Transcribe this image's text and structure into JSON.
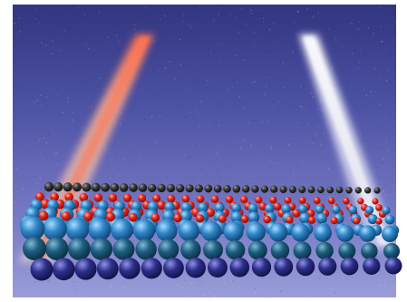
{
  "image": {
    "subject": "atomic-lattice-over-photoemission-spectrum",
    "colors": {
      "background_top": "#3b3f92",
      "background_bottom": "#8c8fd2",
      "band_left_hot": "#e35a3c",
      "band_left_warm": "#f0b6a0",
      "band_right": "#ffffff",
      "black_atoms": "#2a2a2a",
      "red_atoms": "#e3261d",
      "cyan_atoms": "#2f86c9",
      "teal_atoms": "#1e5d7f",
      "navy_atoms": "#2d2f8a",
      "frame": "#ffffff"
    }
  }
}
